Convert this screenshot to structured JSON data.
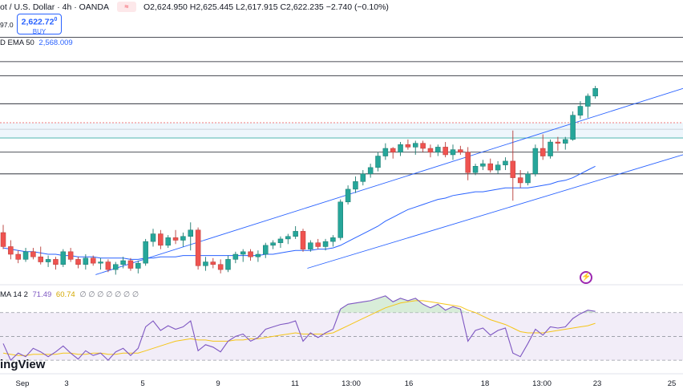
{
  "header": {
    "symbol": "ot / U.S. Dollar · 4h · OANDA",
    "ohlc": "O2,624.950  H2,625.445  L2,617.915  C2,622.235  −2.740 (−0.10%)",
    "badge_icon": "equals-icon",
    "badge_text": "≈",
    "price_left": "97.0",
    "buy_price": "2,622.72",
    "buy_sup": "0",
    "buy_label": "BUY",
    "ema_label": "D EMA 50",
    "ema_value": "2,568.009",
    "ema_color": "#2962ff"
  },
  "rsi_header": {
    "label": "MA 14 2",
    "rsi_value": "71.49",
    "ma_value": "60.74",
    "extra": "∅ ∅ ∅ ∅ ∅ ∅ ∅"
  },
  "watermark": "ingView",
  "colors": {
    "up": "#26a69a",
    "down": "#ef5350",
    "ema": "#2962ff",
    "rsi": "#7e57c2",
    "rsi_ma": "#f5c518",
    "channel": "#2962ff"
  },
  "chart_data": {
    "type": "candlestick",
    "title": "",
    "xlabel": "",
    "ylabel": "",
    "x_ticks": [
      "Sep",
      "3",
      "5",
      "9",
      "11",
      "13:00",
      "16",
      "18",
      "13:00",
      "23",
      "25"
    ],
    "ylim": [
      2470,
      2680
    ],
    "horizontal_levels": [
      2662.0,
      2643.0,
      2632.0,
      2610.0,
      2590.0,
      2572.0,
      2555.0
    ],
    "candles": [
      [
        2509,
        2515,
        2496,
        2498
      ],
      [
        2498,
        2503,
        2488,
        2492
      ],
      [
        2492,
        2495,
        2485,
        2488
      ],
      [
        2488,
        2497,
        2486,
        2494
      ],
      [
        2494,
        2497,
        2488,
        2490
      ],
      [
        2490,
        2498,
        2484,
        2486
      ],
      [
        2486,
        2491,
        2482,
        2488
      ],
      [
        2488,
        2490,
        2480,
        2484
      ],
      [
        2484,
        2496,
        2482,
        2494
      ],
      [
        2494,
        2497,
        2486,
        2488
      ],
      [
        2488,
        2490,
        2481,
        2484
      ],
      [
        2484,
        2492,
        2480,
        2489
      ],
      [
        2489,
        2491,
        2483,
        2485
      ],
      [
        2485,
        2489,
        2480,
        2486
      ],
      [
        2486,
        2488,
        2478,
        2480
      ],
      [
        2480,
        2486,
        2476,
        2484
      ],
      [
        2484,
        2490,
        2481,
        2487
      ],
      [
        2487,
        2489,
        2479,
        2481
      ],
      [
        2481,
        2487,
        2477,
        2485
      ],
      [
        2485,
        2504,
        2483,
        2502
      ],
      [
        2502,
        2512,
        2498,
        2508
      ],
      [
        2508,
        2511,
        2496,
        2499
      ],
      [
        2499,
        2507,
        2497,
        2505
      ],
      [
        2505,
        2511,
        2500,
        2503
      ],
      [
        2503,
        2509,
        2498,
        2506
      ],
      [
        2506,
        2517,
        2495,
        2511
      ],
      [
        2511,
        2513,
        2480,
        2483
      ],
      [
        2483,
        2490,
        2479,
        2486
      ],
      [
        2486,
        2489,
        2481,
        2484
      ],
      [
        2484,
        2488,
        2477,
        2480
      ],
      [
        2480,
        2491,
        2478,
        2488
      ],
      [
        2488,
        2494,
        2485,
        2492
      ],
      [
        2492,
        2496,
        2486,
        2494
      ],
      [
        2494,
        2496,
        2487,
        2490
      ],
      [
        2490,
        2495,
        2486,
        2492
      ],
      [
        2492,
        2501,
        2489,
        2499
      ],
      [
        2499,
        2503,
        2496,
        2501
      ],
      [
        2501,
        2506,
        2497,
        2504
      ],
      [
        2504,
        2508,
        2500,
        2506
      ],
      [
        2506,
        2514,
        2504,
        2510
      ],
      [
        2510,
        2512,
        2494,
        2496
      ],
      [
        2496,
        2503,
        2494,
        2501
      ],
      [
        2501,
        2504,
        2496,
        2498
      ],
      [
        2498,
        2504,
        2495,
        2502
      ],
      [
        2502,
        2507,
        2498,
        2505
      ],
      [
        2505,
        2535,
        2503,
        2533
      ],
      [
        2533,
        2546,
        2531,
        2543
      ],
      [
        2543,
        2553,
        2540,
        2549
      ],
      [
        2549,
        2558,
        2546,
        2555
      ],
      [
        2555,
        2563,
        2552,
        2560
      ],
      [
        2560,
        2572,
        2557,
        2569
      ],
      [
        2569,
        2579,
        2566,
        2575
      ],
      [
        2575,
        2576,
        2567,
        2572
      ],
      [
        2572,
        2580,
        2569,
        2578
      ],
      [
        2578,
        2582,
        2574,
        2576
      ],
      [
        2576,
        2581,
        2570,
        2579
      ],
      [
        2579,
        2581,
        2572,
        2575
      ],
      [
        2575,
        2578,
        2568,
        2572
      ],
      [
        2572,
        2578,
        2569,
        2576
      ],
      [
        2576,
        2580,
        2568,
        2570
      ],
      [
        2570,
        2578,
        2566,
        2574
      ],
      [
        2574,
        2577,
        2570,
        2572
      ],
      [
        2572,
        2576,
        2550,
        2556
      ],
      [
        2556,
        2563,
        2554,
        2561
      ],
      [
        2561,
        2566,
        2558,
        2563
      ],
      [
        2563,
        2567,
        2556,
        2558
      ],
      [
        2558,
        2565,
        2555,
        2562
      ],
      [
        2562,
        2568,
        2558,
        2565
      ],
      [
        2565,
        2589,
        2534,
        2552
      ],
      [
        2552,
        2558,
        2544,
        2548
      ],
      [
        2548,
        2557,
        2546,
        2555
      ],
      [
        2555,
        2578,
        2553,
        2575
      ],
      [
        2575,
        2586,
        2566,
        2569
      ],
      [
        2569,
        2582,
        2567,
        2580
      ],
      [
        2580,
        2584,
        2573,
        2579
      ],
      [
        2579,
        2584,
        2574,
        2582
      ],
      [
        2582,
        2604,
        2581,
        2601
      ],
      [
        2601,
        2612,
        2598,
        2608
      ],
      [
        2608,
        2618,
        2599,
        2616
      ],
      [
        2616,
        2624,
        2614,
        2622
      ]
    ],
    "ema50": [
      2497,
      2496,
      2495,
      2494,
      2494,
      2493,
      2492,
      2492,
      2491,
      2491,
      2490,
      2490,
      2490,
      2489,
      2489,
      2489,
      2489,
      2488,
      2488,
      2489,
      2489,
      2490,
      2490,
      2490,
      2491,
      2491,
      2491,
      2491,
      2491,
      2491,
      2491,
      2491,
      2491,
      2491,
      2491,
      2492,
      2492,
      2493,
      2494,
      2495,
      2495,
      2495,
      2496,
      2496,
      2497,
      2499,
      2502,
      2505,
      2508,
      2511,
      2514,
      2518,
      2521,
      2524,
      2527,
      2529,
      2531,
      2533,
      2535,
      2536,
      2538,
      2539,
      2540,
      2541,
      2541,
      2542,
      2543,
      2544,
      2544,
      2544,
      2544,
      2545,
      2546,
      2547,
      2549,
      2550,
      2552,
      2555,
      2558,
      2561
    ],
    "channel_upper": [
      [
        0.14,
        2476
      ],
      [
        1.0,
        2622
      ]
    ],
    "channel_lower": [
      [
        0.45,
        2481
      ],
      [
        1.0,
        2570
      ]
    ],
    "rsi": [
      44,
      30,
      36,
      33,
      40,
      37,
      33,
      37,
      42,
      36,
      31,
      38,
      34,
      36,
      30,
      37,
      40,
      34,
      40,
      58,
      63,
      55,
      59,
      56,
      58,
      63,
      38,
      43,
      41,
      37,
      46,
      50,
      52,
      46,
      49,
      56,
      58,
      60,
      61,
      63,
      46,
      53,
      49,
      53,
      56,
      73,
      77,
      78,
      79,
      80,
      82,
      84,
      79,
      82,
      80,
      82,
      77,
      74,
      77,
      72,
      75,
      73,
      46,
      55,
      57,
      51,
      55,
      57,
      36,
      33,
      44,
      56,
      51,
      58,
      57,
      58,
      65,
      69,
      72,
      71
    ],
    "rsi_ma": [
      36,
      35,
      34,
      34,
      35,
      35,
      35,
      35,
      36,
      36,
      35,
      35,
      36,
      36,
      35,
      35,
      36,
      36,
      36,
      38,
      40,
      42,
      44,
      46,
      47,
      48,
      47,
      47,
      46,
      46,
      46,
      47,
      47,
      48,
      48,
      49,
      50,
      51,
      52,
      53,
      52,
      52,
      52,
      52,
      53,
      56,
      59,
      62,
      65,
      68,
      71,
      74,
      76,
      78,
      79,
      80,
      80,
      79,
      78,
      77,
      76,
      75,
      72,
      70,
      67,
      64,
      62,
      60,
      57,
      54,
      53,
      53,
      53,
      54,
      55,
      56,
      57,
      58,
      59,
      61
    ],
    "rsi_levels": [
      70,
      50,
      30
    ]
  }
}
